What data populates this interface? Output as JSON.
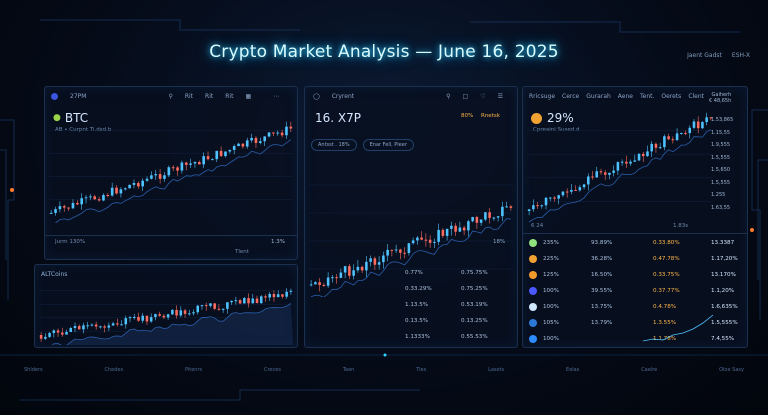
{
  "title": "Crypto Market Analysis — June 16, 2025",
  "top_right": [
    "Jaent Gadst",
    "ESH-X"
  ],
  "left_panel": {
    "toolbar": [
      "27PM",
      "Rit",
      "Rit",
      "Rit"
    ],
    "coin": "BTC",
    "coin_sub": "AB • Curpnt Ti.dsd.b",
    "footer_left": "Jurm 130%",
    "footer_right": "1.3%",
    "footer_right2": "Tlent"
  },
  "alt_panel": {
    "title": "ALTCoins"
  },
  "mid_panel": {
    "toolbar": [
      "Cryrent"
    ],
    "coin": "16. X7P",
    "pct": "80%",
    "pct_label": "Rnetsk",
    "chips": [
      "Antsst . 18%",
      "Enar Fell, Pleer"
    ],
    "val1": "18%",
    "rows": [
      [
        "0.77%",
        "0.75.75%"
      ],
      [
        "0.33.29%",
        "0.75.25%"
      ],
      [
        "1.13.5%",
        "0.53.19%"
      ],
      [
        "0.13.5%",
        "0.13.25%"
      ],
      [
        "1.1333%",
        "0.55.53%"
      ]
    ]
  },
  "right_panel": {
    "toolbar": [
      "Rricsuge",
      "Cerce",
      "Gurarah",
      "Aene",
      "Tent.",
      "Oerets",
      "Clent"
    ],
    "gainers_label": "Gaiherh",
    "gainers_value": "€ 48,65h",
    "coin": "29%",
    "coin_sub": "Cpreaini Sused.d",
    "side_values": [
      "1.53,865",
      "1.15,55",
      "1.9,555",
      "1.5,555",
      "1.5,650",
      "1.5,555",
      "1.255",
      "1.63,55"
    ],
    "mini_left": "6 24",
    "mini_mid": "1.83s",
    "rows": [
      {
        "color": "#8ee07a",
        "a": "235%",
        "b": "93.89%",
        "c": "0.33.80%",
        "d": "13.3387"
      },
      {
        "color": "#f2a233",
        "a": "225%",
        "b": "36.28%",
        "c": "0.47.78%",
        "d": "1.17,20%"
      },
      {
        "color": "#f29b2a",
        "a": "125%",
        "b": "16.50%",
        "c": "0.33.75%",
        "d": "13.170%"
      },
      {
        "color": "#4a58ff",
        "a": "100%",
        "b": "39.55%",
        "c": "0.37.77%",
        "d": "1.1,20%"
      },
      {
        "color": "#cfe6ff",
        "a": "100%",
        "b": "13.75%",
        "c": "0.4.78%",
        "d": "1.6,635%"
      },
      {
        "color": "#2b7ad8",
        "a": "105%",
        "b": "13.79%",
        "c": "1.3.55%",
        "d": "1.5,555%"
      },
      {
        "color": "#2c8cff",
        "a": "100%",
        "b": "",
        "c": "1.1,78%",
        "d": "7.4,55%"
      }
    ]
  },
  "bottom_labels": [
    "Shlders",
    "Chedes",
    "Pitenrs",
    "Creces",
    "Taen",
    "Ties",
    "Lasets",
    "Eelas",
    "Caelre",
    "Oloe Sasy"
  ],
  "colors": {
    "up": "#4fc3ff",
    "down": "#ff6b5e",
    "accent": "#2bd6ff"
  }
}
